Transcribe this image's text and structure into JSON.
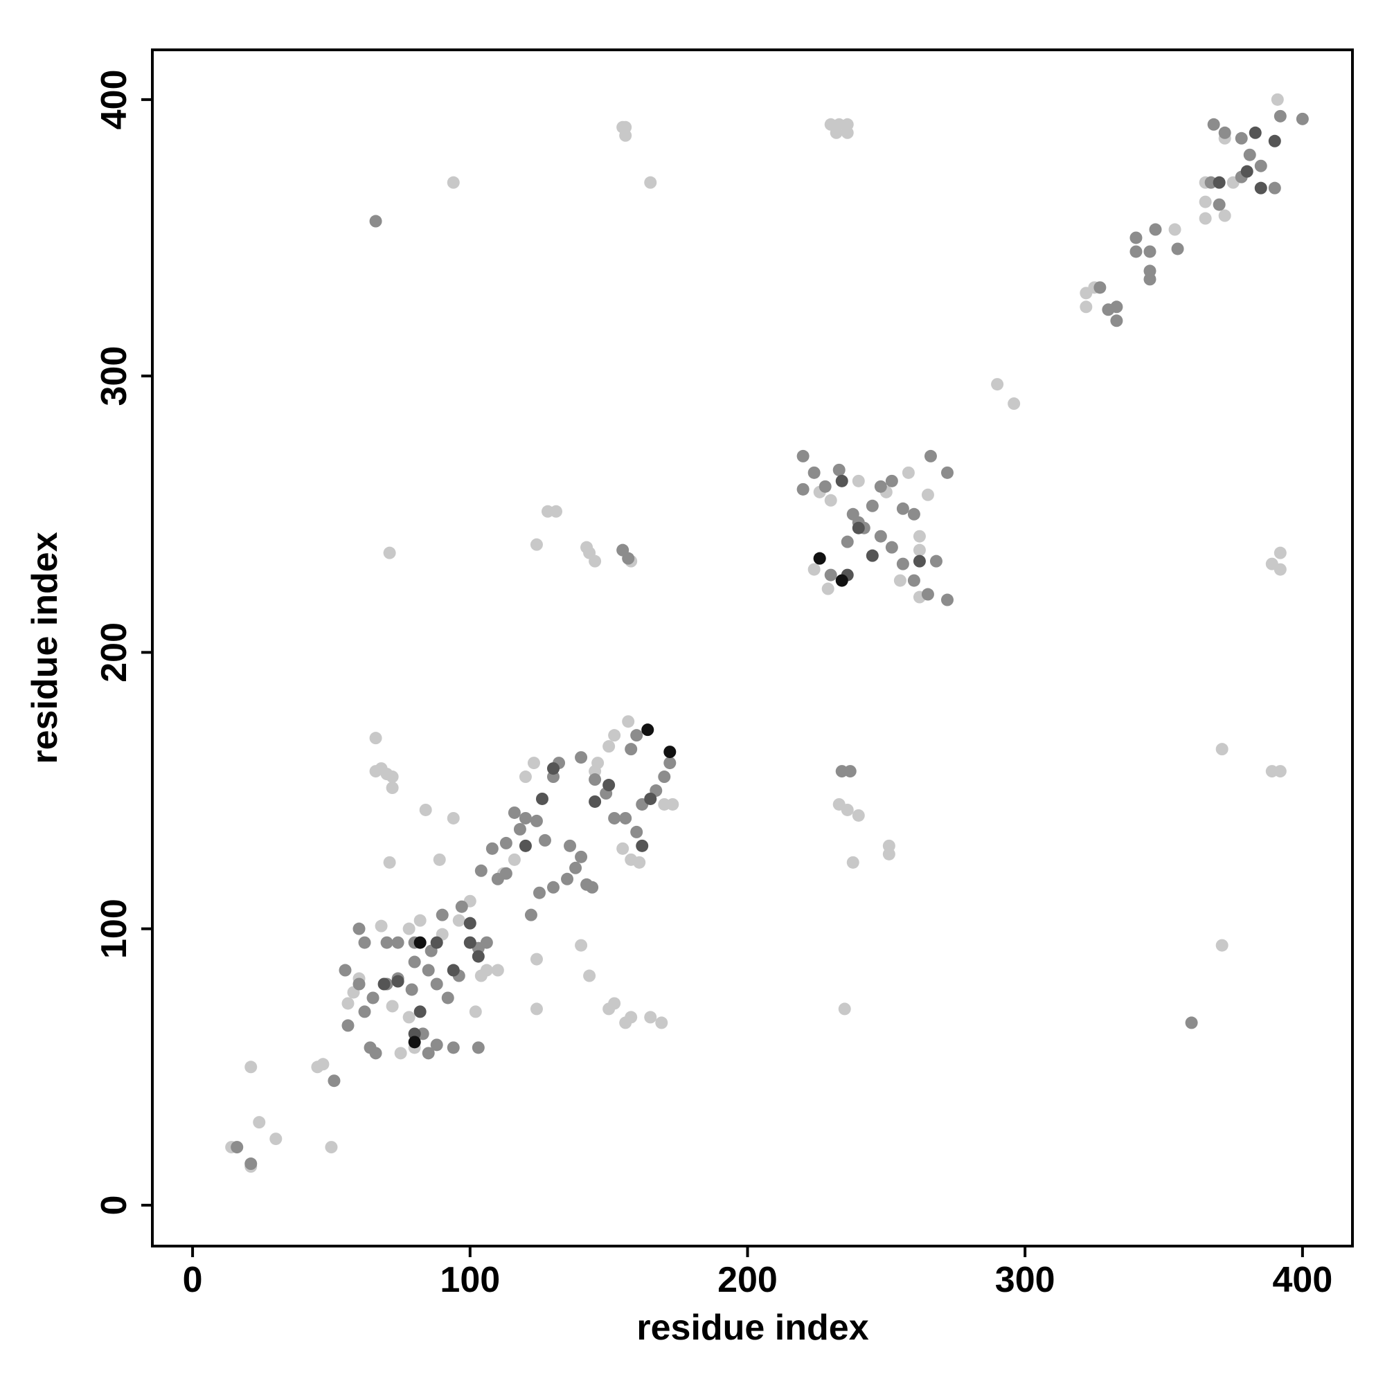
{
  "chart_data": {
    "type": "scatter",
    "xlabel": "residue index",
    "ylabel": "residue index",
    "xlim": [
      -14.5,
      418
    ],
    "ylim": [
      -14.8,
      418
    ],
    "xticks": [
      0,
      100,
      200,
      300,
      400
    ],
    "yticks": [
      0,
      100,
      200,
      300,
      400
    ],
    "series": [
      {
        "color": "#c8c8c8",
        "x": [
          14,
          16,
          21,
          24,
          30,
          21,
          50,
          45,
          47,
          156,
          156,
          94,
          165,
          230,
          236,
          233,
          236,
          290,
          296,
          128,
          131,
          124,
          142,
          145,
          143,
          158,
          71,
          392,
          389,
          392,
          371,
          389,
          392,
          66,
          70,
          72,
          66,
          84,
          94,
          71,
          89,
          238,
          251,
          251,
          233,
          236,
          240,
          371,
          140,
          124,
          143,
          124,
          150,
          152,
          158,
          156,
          165,
          169,
          235,
          145,
          146,
          150,
          152,
          157,
          155,
          158,
          161,
          170,
          173,
          120,
          123,
          116,
          112,
          100,
          96,
          90,
          82,
          78,
          68,
          58,
          56,
          60,
          75,
          80,
          72,
          78,
          102,
          104,
          106,
          110,
          229,
          224,
          226,
          230,
          240,
          250,
          258,
          262,
          262,
          265,
          255,
          262,
          322,
          325,
          322,
          391,
          365,
          375,
          365,
          372,
          365,
          354,
          372,
          155,
          232,
          72,
          68
        ],
        "y": [
          21,
          21,
          14,
          30,
          24,
          50,
          21,
          50,
          51,
          390,
          387,
          370,
          370,
          391,
          388,
          391,
          391,
          297,
          290,
          251,
          251,
          239,
          238,
          233,
          236,
          233,
          236,
          236,
          232,
          230,
          165,
          157,
          157,
          157,
          156,
          151,
          169,
          143,
          140,
          124,
          125,
          124,
          130,
          127,
          145,
          143,
          141,
          94,
          94,
          89,
          83,
          71,
          71,
          73,
          68,
          66,
          68,
          66,
          71,
          157,
          160,
          166,
          170,
          175,
          129,
          125,
          124,
          145,
          145,
          155,
          160,
          125,
          120,
          110,
          103,
          98,
          103,
          100,
          101,
          77,
          73,
          82,
          55,
          57,
          72,
          68,
          70,
          83,
          85,
          85,
          223,
          230,
          258,
          255,
          262,
          258,
          265,
          242,
          237,
          257,
          226,
          220,
          325,
          332,
          330,
          400,
          363,
          370,
          370,
          358,
          357,
          353,
          386,
          390,
          388,
          155,
          158
        ]
      },
      {
        "color": "#8c8c8c",
        "x": [
          16,
          21,
          51,
          66,
          367,
          370,
          385,
          390,
          378,
          381,
          372,
          368,
          378,
          392,
          400,
          347,
          355,
          340,
          345,
          340,
          345,
          345,
          327,
          333,
          330,
          333,
          360,
          220,
          224,
          228,
          233,
          238,
          242,
          248,
          252,
          256,
          260,
          265,
          272,
          268,
          266,
          272,
          260,
          256,
          248,
          252,
          236,
          240,
          245,
          230,
          226,
          220,
          234,
          237,
          155,
          157,
          60,
          62,
          55,
          60,
          65,
          62,
          66,
          64,
          56,
          70,
          74,
          80,
          85,
          88,
          92,
          94,
          103,
          96,
          103,
          106,
          104,
          110,
          108,
          113,
          116,
          120,
          118,
          113,
          124,
          127,
          125,
          122,
          130,
          135,
          138,
          140,
          142,
          144,
          136,
          130,
          132,
          140,
          145,
          149,
          152,
          156,
          160,
          162,
          167,
          170,
          172,
          158,
          160,
          80,
          86,
          74,
          70,
          79,
          83,
          85,
          88,
          90,
          97
        ],
        "y": [
          21,
          15,
          45,
          356,
          370,
          362,
          376,
          368,
          372,
          380,
          388,
          391,
          386,
          394,
          393,
          353,
          346,
          345,
          345,
          350,
          338,
          335,
          332,
          325,
          324,
          320,
          66,
          271,
          265,
          260,
          266,
          250,
          245,
          242,
          238,
          232,
          226,
          221,
          219,
          233,
          271,
          265,
          250,
          252,
          260,
          262,
          240,
          247,
          253,
          228,
          234,
          259,
          157,
          157,
          237,
          234,
          100,
          95,
          85,
          80,
          75,
          70,
          55,
          57,
          65,
          95,
          95,
          88,
          85,
          80,
          75,
          57,
          57,
          83,
          93,
          95,
          121,
          118,
          129,
          120,
          142,
          140,
          136,
          131,
          139,
          132,
          113,
          105,
          115,
          118,
          122,
          126,
          116,
          115,
          130,
          155,
          160,
          162,
          154,
          149,
          140,
          140,
          135,
          145,
          150,
          155,
          160,
          165,
          170,
          95,
          92,
          82,
          80,
          78,
          62,
          55,
          58,
          105,
          108
        ]
      },
      {
        "color": "#555555",
        "x": [
          69,
          74,
          82,
          88,
          94,
          100,
          103,
          100,
          120,
          130,
          150,
          162,
          165,
          126,
          145,
          234,
          236,
          240,
          262,
          245,
          370,
          383,
          385,
          390,
          380,
          80
        ],
        "y": [
          80,
          81,
          70,
          95,
          85,
          95,
          90,
          102,
          130,
          158,
          152,
          130,
          147,
          147,
          146,
          262,
          228,
          245,
          233,
          235,
          370,
          388,
          368,
          385,
          374,
          62
        ]
      },
      {
        "color": "#111111",
        "x": [
          164,
          172,
          226,
          234,
          82,
          80
        ],
        "y": [
          172,
          164,
          234,
          226,
          95,
          59
        ]
      }
    ]
  }
}
